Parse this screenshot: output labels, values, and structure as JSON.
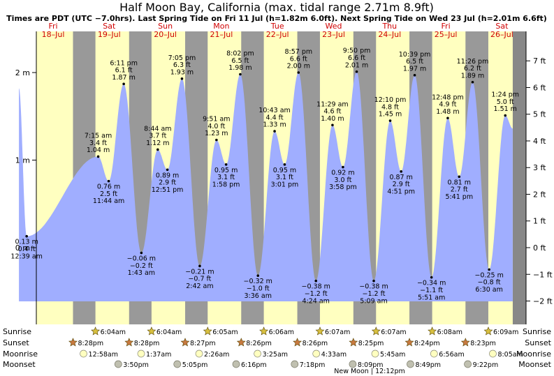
{
  "header": {
    "title": "Half Moon Bay, California (max. tidal range 2.71m 8.9ft)",
    "subtitle": "Times are PDT (UTC −7.0hrs). Last Spring Tide on Fri 11 Jul (h=1.82m 6.0ft). Next Spring Tide on Wed 23 Jul (h=2.01m 6.6ft)"
  },
  "days": [
    {
      "dow": "Fri",
      "date": "18–Jul"
    },
    {
      "dow": "Sat",
      "date": "19–Jul"
    },
    {
      "dow": "Sun",
      "date": "20–Jul"
    },
    {
      "dow": "Mon",
      "date": "21–Jul"
    },
    {
      "dow": "Tue",
      "date": "22–Jul"
    },
    {
      "dow": "Wed",
      "date": "23–Jul"
    },
    {
      "dow": "Thu",
      "date": "24–Jul"
    },
    {
      "dow": "Fri",
      "date": "25–Jul"
    },
    {
      "dow": "Sat",
      "date": "26–Jul"
    }
  ],
  "chart_data": {
    "type": "area",
    "title": "Half Moon Bay, California (max. tidal range 2.71m 8.9ft)",
    "y_left_unit": "m",
    "y_left_ticks": [
      "2 m",
      "1 m",
      "0 m"
    ],
    "y_right_ticks": [
      "7 ft",
      "6 ft",
      "5 ft",
      "4 ft",
      "3 ft",
      "2 ft",
      "1 ft",
      "0 ft",
      "−1 ft",
      "−2 ft"
    ],
    "ylim_m": [
      -0.9,
      2.52
    ],
    "start_value_m": 1.82,
    "end_value_m": 1.36,
    "tides": [
      {
        "t": "18 Jul 12:39am",
        "h": 0.13,
        "m": "0.13 m",
        "ft": "0.4 ft",
        "time": "12:39 am",
        "type": "low"
      },
      {
        "t": "19 Jul 7:15am",
        "h": 1.04,
        "m": "1.04 m",
        "ft": "3.4 ft",
        "time": "7:15 am",
        "type": "high"
      },
      {
        "t": "19 Jul 11:44am",
        "h": 0.76,
        "m": "0.76 m",
        "ft": "2.5 ft",
        "time": "11:44 am",
        "type": "low"
      },
      {
        "t": "19 Jul 6:11pm",
        "h": 1.87,
        "m": "1.87 m",
        "ft": "6.1 ft",
        "time": "6:11 pm",
        "type": "high"
      },
      {
        "t": "20 Jul 1:43am",
        "h": -0.06,
        "m": "−0.06 m",
        "ft": "−0.2 ft",
        "time": "1:43 am",
        "type": "low"
      },
      {
        "t": "20 Jul 8:44am",
        "h": 1.12,
        "m": "1.12 m",
        "ft": "3.7 ft",
        "time": "8:44 am",
        "type": "high"
      },
      {
        "t": "20 Jul 12:51pm",
        "h": 0.89,
        "m": "0.89 m",
        "ft": "2.9 ft",
        "time": "12:51 pm",
        "type": "low"
      },
      {
        "t": "20 Jul 7:05pm",
        "h": 1.93,
        "m": "1.93 m",
        "ft": "6.3 ft",
        "time": "7:05 pm",
        "type": "high"
      },
      {
        "t": "21 Jul 2:42am",
        "h": -0.21,
        "m": "−0.21 m",
        "ft": "−0.7 ft",
        "time": "2:42 am",
        "type": "low"
      },
      {
        "t": "21 Jul 9:51am",
        "h": 1.23,
        "m": "1.23 m",
        "ft": "4.0 ft",
        "time": "9:51 am",
        "type": "high"
      },
      {
        "t": "21 Jul 1:58pm",
        "h": 0.95,
        "m": "0.95 m",
        "ft": "3.1 ft",
        "time": "1:58 pm",
        "type": "low"
      },
      {
        "t": "21 Jul 8:02pm",
        "h": 1.98,
        "m": "1.98 m",
        "ft": "6.5 ft",
        "time": "8:02 pm",
        "type": "high"
      },
      {
        "t": "22 Jul 3:36am",
        "h": -0.32,
        "m": "−0.32 m",
        "ft": "−1.0 ft",
        "time": "3:36 am",
        "type": "low"
      },
      {
        "t": "22 Jul 10:43am",
        "h": 1.33,
        "m": "1.33 m",
        "ft": "4.4 ft",
        "time": "10:43 am",
        "type": "high"
      },
      {
        "t": "22 Jul 3:01pm",
        "h": 0.95,
        "m": "0.95 m",
        "ft": "3.1 ft",
        "time": "3:01 pm",
        "type": "low"
      },
      {
        "t": "22 Jul 8:57pm",
        "h": 2.0,
        "m": "2.00 m",
        "ft": "6.6 ft",
        "time": "8:57 pm",
        "type": "high"
      },
      {
        "t": "23 Jul 4:24am",
        "h": -0.38,
        "m": "−0.38 m",
        "ft": "−1.2 ft",
        "time": "4:24 am",
        "type": "low"
      },
      {
        "t": "23 Jul 11:29am",
        "h": 1.4,
        "m": "1.40 m",
        "ft": "4.6 ft",
        "time": "11:29 am",
        "type": "high"
      },
      {
        "t": "23 Jul 3:58pm",
        "h": 0.92,
        "m": "0.92 m",
        "ft": "3.0 ft",
        "time": "3:58 pm",
        "type": "low"
      },
      {
        "t": "23 Jul 9:50pm",
        "h": 2.01,
        "m": "2.01 m",
        "ft": "6.6 ft",
        "time": "9:50 pm",
        "type": "high"
      },
      {
        "t": "24 Jul 5:09am",
        "h": -0.38,
        "m": "−0.38 m",
        "ft": "−1.2 ft",
        "time": "5:09 am",
        "type": "low"
      },
      {
        "t": "24 Jul 12:10pm",
        "h": 1.45,
        "m": "1.45 m",
        "ft": "4.8 ft",
        "time": "12:10 pm",
        "type": "high"
      },
      {
        "t": "24 Jul 4:51pm",
        "h": 0.87,
        "m": "0.87 m",
        "ft": "2.9 ft",
        "time": "4:51 pm",
        "type": "low"
      },
      {
        "t": "24 Jul 10:39pm",
        "h": 1.97,
        "m": "1.97 m",
        "ft": "6.5 ft",
        "time": "10:39 pm",
        "type": "high"
      },
      {
        "t": "25 Jul 5:51am",
        "h": -0.34,
        "m": "−0.34 m",
        "ft": "−1.1 ft",
        "time": "5:51 am",
        "type": "low"
      },
      {
        "t": "25 Jul 12:48pm",
        "h": 1.48,
        "m": "1.48 m",
        "ft": "4.9 ft",
        "time": "12:48 pm",
        "type": "high"
      },
      {
        "t": "25 Jul 5:41pm",
        "h": 0.81,
        "m": "0.81 m",
        "ft": "2.7 ft",
        "time": "5:41 pm",
        "type": "low"
      },
      {
        "t": "25 Jul 11:26pm",
        "h": 1.89,
        "m": "1.89 m",
        "ft": "6.2 ft",
        "time": "11:26 pm",
        "type": "high"
      },
      {
        "t": "26 Jul 6:30am",
        "h": -0.25,
        "m": "−0.25 m",
        "ft": "−0.8 ft",
        "time": "6:30 am",
        "type": "low"
      },
      {
        "t": "26 Jul 1:24pm",
        "h": 1.51,
        "m": "1.51 m",
        "ft": "5.0 ft",
        "time": "1:24 pm",
        "type": "high"
      }
    ]
  },
  "rows": {
    "sunrise_label": "Sunrise",
    "sunset_label": "Sunset",
    "moonrise_label": "Moonrise",
    "moonset_label": "Moonset"
  },
  "events": {
    "sunrise": [
      "6:04am",
      "6:04am",
      "6:05am",
      "6:06am",
      "6:07am",
      "6:07am",
      "6:08am",
      "6:09am"
    ],
    "sunset": [
      "8:28pm",
      "8:28pm",
      "8:27pm",
      "8:26pm",
      "8:26pm",
      "8:25pm",
      "8:24pm",
      "8:23pm"
    ],
    "moonrise": [
      "12:58am",
      "1:37am",
      "2:26am",
      "3:25am",
      "4:33am",
      "5:45am",
      "6:56am",
      "8:05am"
    ],
    "moonset": [
      "3:50pm",
      "5:05pm",
      "6:16pm",
      "7:18pm",
      "8:09pm",
      "8:49pm",
      "9:22pm"
    ]
  },
  "moon_phase": {
    "text": "New Moon | 12:12pm"
  },
  "colors": {
    "day_bg": "#ffffc0",
    "night_bg": "#999999",
    "water": "#a0aeff",
    "day_label": "#d00000",
    "sun_star": "#d8c040",
    "sunset_star": "#c87a40",
    "moonrise_disc": "#ffffc0",
    "moonset_disc": "#c0c0b0"
  }
}
